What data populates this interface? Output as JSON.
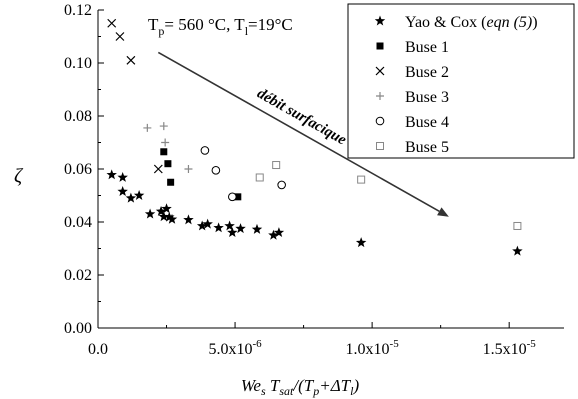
{
  "chart_data": {
    "type": "scatter",
    "title": "",
    "xlabel": "",
    "ylabel": "ζ",
    "xlim": [
      0,
      1.7e-05
    ],
    "ylim": [
      0,
      0.12
    ],
    "grid": false,
    "legend_position": "top-right",
    "x_ticks": [
      {
        "value": 0,
        "label": "0.0"
      },
      {
        "value": 5e-06,
        "label": "5.0x10-6"
      },
      {
        "value": 1e-05,
        "label": "1.0x10-5"
      },
      {
        "value": 1.5e-05,
        "label": "1.5x10-5"
      }
    ],
    "y_ticks": [
      {
        "value": 0.0,
        "label": "0.00"
      },
      {
        "value": 0.02,
        "label": "0.02"
      },
      {
        "value": 0.04,
        "label": "0.04"
      },
      {
        "value": 0.06,
        "label": "0.06"
      },
      {
        "value": 0.08,
        "label": "0.08"
      },
      {
        "value": 0.1,
        "label": "0.10"
      },
      {
        "value": 0.12,
        "label": "0.12"
      }
    ],
    "series": [
      {
        "name": "Yao & Cox (eqn (5))",
        "marker": "star",
        "points": [
          [
            5e-07,
            0.0578
          ],
          [
            9e-07,
            0.0568
          ],
          [
            9e-07,
            0.0515
          ],
          [
            1.2e-06,
            0.049
          ],
          [
            1.5e-06,
            0.05
          ],
          [
            1.9e-06,
            0.043
          ],
          [
            2.3e-06,
            0.044
          ],
          [
            2.4e-06,
            0.042
          ],
          [
            2.5e-06,
            0.045
          ],
          [
            2.6e-06,
            0.0418
          ],
          [
            2.7e-06,
            0.041
          ],
          [
            3.3e-06,
            0.0408
          ],
          [
            3.8e-06,
            0.0385
          ],
          [
            4e-06,
            0.0392
          ],
          [
            4.4e-06,
            0.0378
          ],
          [
            4.8e-06,
            0.0385
          ],
          [
            4.9e-06,
            0.036
          ],
          [
            5.2e-06,
            0.0375
          ],
          [
            5.8e-06,
            0.0372
          ],
          [
            6.4e-06,
            0.035
          ],
          [
            6.6e-06,
            0.036
          ],
          [
            9.6e-06,
            0.0322
          ],
          [
            1.53e-05,
            0.029
          ]
        ]
      },
      {
        "name": "Buse 1",
        "marker": "filled-square",
        "points": [
          [
            2.4e-06,
            0.0665
          ],
          [
            2.55e-06,
            0.062
          ],
          [
            2.65e-06,
            0.055
          ],
          [
            5.1e-06,
            0.0495
          ]
        ]
      },
      {
        "name": "Buse 2",
        "marker": "cross",
        "points": [
          [
            5e-07,
            0.115
          ],
          [
            8e-07,
            0.11
          ],
          [
            1.2e-06,
            0.101
          ],
          [
            2.2e-06,
            0.06
          ]
        ]
      },
      {
        "name": "Buse 3",
        "marker": "plus",
        "points": [
          [
            1.8e-06,
            0.0755
          ],
          [
            2.4e-06,
            0.0762
          ],
          [
            2.45e-06,
            0.07
          ],
          [
            3.3e-06,
            0.06
          ]
        ]
      },
      {
        "name": "Buse 4",
        "marker": "open-circle",
        "points": [
          [
            3.9e-06,
            0.067
          ],
          [
            4.3e-06,
            0.0595
          ],
          [
            4.9e-06,
            0.0495
          ],
          [
            6.7e-06,
            0.054
          ]
        ]
      },
      {
        "name": "Buse 5",
        "marker": "open-square",
        "points": [
          [
            5.9e-06,
            0.0568
          ],
          [
            6.5e-06,
            0.0615
          ],
          [
            9.6e-06,
            0.056
          ],
          [
            1.53e-05,
            0.0385
          ]
        ]
      }
    ],
    "annotations": {
      "conditions_main": "T",
      "conditions_p_sub": "p",
      "conditions_mid": "= 560 °C, T",
      "conditions_l_sub": "l",
      "conditions_end": "=19°C",
      "arrow_label": "débit surfacique",
      "arrow_from": [
        2.2e-06,
        0.104
      ],
      "arrow_to": [
        1.28e-05,
        0.042
      ]
    },
    "xlabel_parts": {
      "We": "We",
      "s": "s",
      "T": " T",
      "sat": "sat",
      "rest": "/(T",
      "p": "p",
      "plus": "+ΔT",
      "l": "l",
      "close": ")"
    },
    "legend_name_parts": {
      "yao_prefix": "Yao & Cox (",
      "yao_italic": "eqn (5)",
      "yao_suffix": ")"
    }
  }
}
